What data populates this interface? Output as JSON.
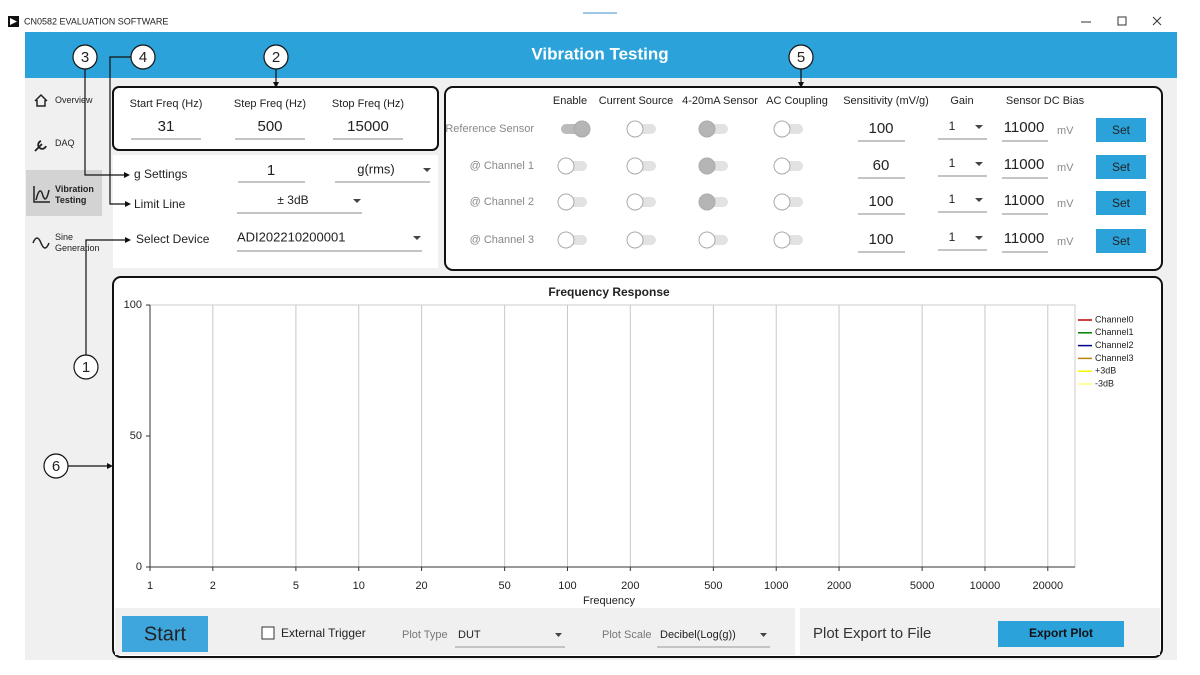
{
  "window": {
    "title": "CN0582 EVALUATION SOFTWARE"
  },
  "header": {
    "title": "Vibration Testing"
  },
  "sidebar": [
    {
      "label": "Overview",
      "selected": false
    },
    {
      "label": "DAQ",
      "selected": false
    },
    {
      "label": "Vibration Testing",
      "selected": true
    },
    {
      "label": "Sine Generation",
      "selected": false
    }
  ],
  "callouts": [
    "1",
    "2",
    "3",
    "4",
    "5",
    "6"
  ],
  "frequency": [
    {
      "label": "Start Freq (Hz)",
      "value": 31
    },
    {
      "label": "Step Freq (Hz)",
      "value": 500
    },
    {
      "label": "Stop Freq (Hz)",
      "value": 15000
    }
  ],
  "settings": {
    "g_label": "g Settings",
    "g_value": 1,
    "g_unit": "g(rms)",
    "limit_label": "Limit Line",
    "limit_value": "± 3dB",
    "device_label": "Select Device",
    "device_value": "ADI202210200001"
  },
  "sensors": {
    "headers": [
      "Enable",
      "Current Source",
      "4-20mA Sensor",
      "AC Coupling",
      "Sensitivity (mV/g)",
      "Gain",
      "Sensor DC Bias"
    ],
    "rows": [
      {
        "label": "Reference Sensor",
        "toggles": [
          "on",
          "off",
          "disabled",
          "off"
        ],
        "sensitivity": 100,
        "gain": 1,
        "bias": 11000,
        "unit": "mV",
        "button": "Set"
      },
      {
        "label": "@ Channel 1",
        "toggles": [
          "off",
          "off",
          "disabled",
          "off"
        ],
        "sensitivity": 60,
        "gain": 1,
        "bias": 11000,
        "unit": "mV",
        "button": "Set"
      },
      {
        "label": "@ Channel 2",
        "toggles": [
          "off",
          "off",
          "disabled",
          "off"
        ],
        "sensitivity": 100,
        "gain": 1,
        "bias": 11000,
        "unit": "mV",
        "button": "Set"
      },
      {
        "label": "@ Channel 3",
        "toggles": [
          "off",
          "off",
          "off",
          "off"
        ],
        "sensitivity": 100,
        "gain": 1,
        "bias": 11000,
        "unit": "mV",
        "button": "Set"
      }
    ]
  },
  "plot": {
    "type": "line",
    "title": "Frequency Response",
    "x_label": "Frequency",
    "log_x": true,
    "xlim": [
      1,
      27000
    ],
    "xticks": [
      1,
      2,
      5,
      10,
      20,
      50,
      100,
      200,
      500,
      1000,
      2000,
      5000,
      10000,
      20000
    ],
    "ylim": [
      0,
      100
    ],
    "yticks": [
      0,
      50,
      100
    ],
    "grid": true,
    "legend": "right",
    "series": [
      {
        "name": "Channel0",
        "color": "#c00000"
      },
      {
        "name": "Channel1",
        "color": "#008000"
      },
      {
        "name": "Channel2",
        "color": "#000090"
      },
      {
        "name": "Channel3",
        "color": "#b8860b"
      },
      {
        "name": "+3dB",
        "color": "#f5f500"
      },
      {
        "name": "-3dB",
        "color": "#ffff80"
      }
    ]
  },
  "controls": {
    "start": "Start",
    "external_trigger": "External Trigger",
    "plot_type_label": "Plot Type",
    "plot_type": "DUT",
    "plot_scale_label": "Plot Scale",
    "plot_scale": "Decibel(Log(g))",
    "export_label": "Plot Export to File",
    "export_button": "Export Plot"
  }
}
